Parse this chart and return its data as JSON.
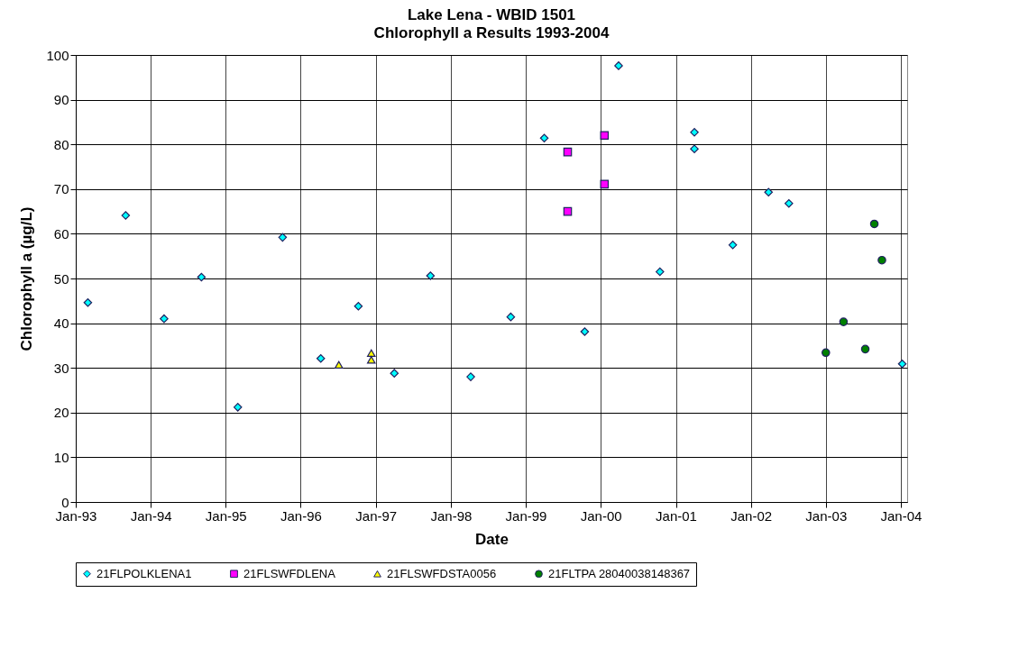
{
  "chart_data": {
    "type": "scatter",
    "title": "Lake Lena - WBID 1501",
    "subtitle": "Chlorophyll a Results 1993-2004",
    "xlabel": "Date",
    "ylabel": "Chlorophyll a (µg/L)",
    "xlim": [
      "1993-01-01",
      "2004-02-01"
    ],
    "xticks": [
      {
        "value": "1993-01-01",
        "label": "Jan-93"
      },
      {
        "value": "1994-01-01",
        "label": "Jan-94"
      },
      {
        "value": "1995-01-01",
        "label": "Jan-95"
      },
      {
        "value": "1996-01-01",
        "label": "Jan-96"
      },
      {
        "value": "1997-01-01",
        "label": "Jan-97"
      },
      {
        "value": "1998-01-01",
        "label": "Jan-98"
      },
      {
        "value": "1999-01-01",
        "label": "Jan-99"
      },
      {
        "value": "2000-01-01",
        "label": "Jan-00"
      },
      {
        "value": "2001-01-01",
        "label": "Jan-01"
      },
      {
        "value": "2002-01-01",
        "label": "Jan-02"
      },
      {
        "value": "2003-01-01",
        "label": "Jan-03"
      },
      {
        "value": "2004-01-01",
        "label": "Jan-04"
      }
    ],
    "ylim": [
      0,
      100
    ],
    "yticks": [
      0,
      10,
      20,
      30,
      40,
      50,
      60,
      70,
      80,
      90,
      100
    ],
    "grid": true,
    "legend": "bottom",
    "series": [
      {
        "name": "21FLPOLKLENA1",
        "color": "#00ffff",
        "marker": "diamond",
        "x": [
          "1993-03-01",
          "1993-09-01",
          "1994-03-07",
          "1994-09-05",
          "1995-03-01",
          "1995-10-05",
          "1996-04-08",
          "1996-10-08",
          "1997-04-01",
          "1997-09-24",
          "1998-04-08",
          "1998-10-20",
          "1999-04-01",
          "1999-10-15",
          "2000-03-28",
          "2000-10-15",
          "2001-04-01",
          "2001-04-01",
          "2001-10-05",
          "2002-03-28",
          "2002-07-05",
          "2004-01-08"
        ],
        "values": [
          44.6,
          64.1,
          41.0,
          50.3,
          21.2,
          59.2,
          32.1,
          43.8,
          28.8,
          50.6,
          28.0,
          41.4,
          81.4,
          38.1,
          97.6,
          51.5,
          82.7,
          79.0,
          57.5,
          69.3,
          66.8,
          30.9
        ]
      },
      {
        "name": "21FLSWFDLENA",
        "color": "#ff00ff",
        "marker": "square",
        "x": [
          "1999-07-24",
          "1999-07-24",
          "2000-01-19",
          "2000-01-19"
        ],
        "values": [
          78.3,
          65.0,
          82.0,
          71.1
        ]
      },
      {
        "name": "21FLSWFDSTA0056",
        "color": "#ffff00",
        "marker": "triangle",
        "x": [
          "1996-07-05",
          "1996-12-10",
          "1996-12-10"
        ],
        "values": [
          30.7,
          33.3,
          31.8
        ]
      },
      {
        "name": "21FLTPA 28040038148367",
        "color": "#008000",
        "marker": "circle",
        "x": [
          "2003-01-01",
          "2003-03-28",
          "2003-07-12",
          "2003-08-25",
          "2003-10-01"
        ],
        "values": [
          33.4,
          40.3,
          34.2,
          62.2,
          54.1
        ]
      }
    ]
  }
}
